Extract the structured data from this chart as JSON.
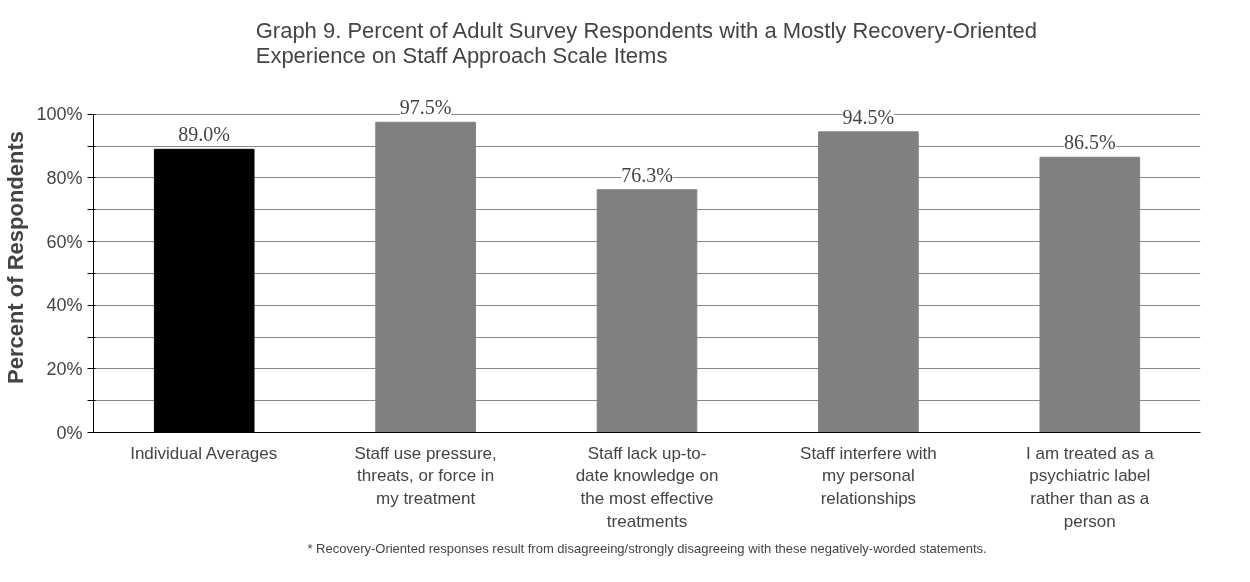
{
  "chart_data": {
    "type": "bar",
    "title": "Graph 9. Percent of Adult Survey Respondents with a Mostly Recovery-Oriented Experience on Staff Approach Scale Items",
    "ylabel": "Percent of Respondents",
    "categories": [
      "Individual Averages",
      "Staff use pressure, threats, or force in my treatment",
      "Staff lack up-to-date knowledge on the most effective treatments",
      "Staff interfere with my personal relationships",
      "I am treated as a psychiatric label rather than as a person"
    ],
    "values": [
      89.0,
      97.5,
      76.3,
      94.5,
      86.5
    ],
    "colors": [
      "#000000",
      "#808080",
      "#808080",
      "#808080",
      "#808080"
    ],
    "value_labels": [
      "89.0%",
      "97.5%",
      "76.3%",
      "94.5%",
      "86.5%"
    ],
    "ylim": [
      0,
      100
    ],
    "yticks": [
      {
        "value": 0,
        "label": "0%"
      },
      {
        "value": 10,
        "label": null
      },
      {
        "value": 20,
        "label": "20%"
      },
      {
        "value": 30,
        "label": null
      },
      {
        "value": 40,
        "label": "40%"
      },
      {
        "value": 50,
        "label": null
      },
      {
        "value": 60,
        "label": "60%"
      },
      {
        "value": 70,
        "label": null
      },
      {
        "value": 80,
        "label": "80%"
      },
      {
        "value": 90,
        "label": null
      },
      {
        "value": 100,
        "label": "100%"
      }
    ],
    "grid": "y",
    "annotations": [
      "* Recovery-Oriented responses result from disagreeing/strongly disagreeing with these negatively-worded statements."
    ]
  }
}
